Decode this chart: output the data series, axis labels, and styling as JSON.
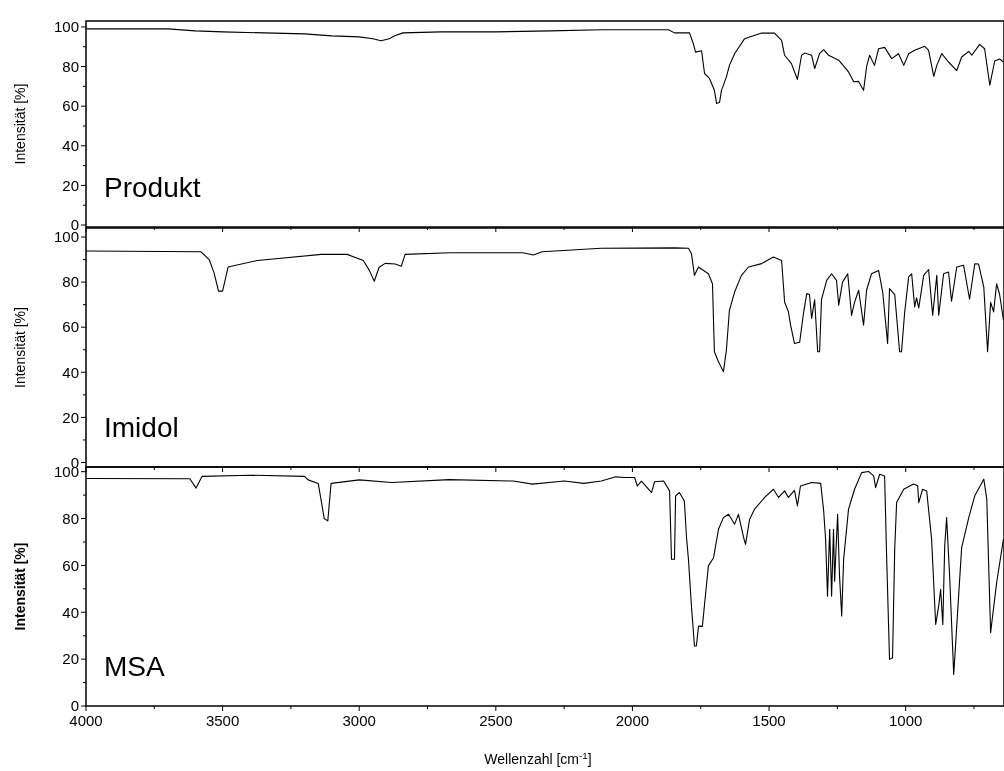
{
  "chart_data": [
    {
      "type": "line",
      "ylabel": "Intensität [%]",
      "annotations": [
        "Produkt"
      ],
      "xlim": [
        4000,
        640
      ],
      "ylim": [
        -1,
        103
      ],
      "tick_labels": "y",
      "xticks": [
        4000,
        {
          "value": 3750,
          "label": null
        },
        3500,
        {
          "value": 3250,
          "label": null
        },
        3000,
        {
          "value": 2750,
          "label": null
        },
        2500,
        {
          "value": 2250,
          "label": null
        },
        2000,
        {
          "value": 1750,
          "label": null
        },
        1500,
        {
          "value": 1250,
          "label": null
        },
        1000,
        {
          "value": 750,
          "label": null
        }
      ],
      "yticks": [
        0,
        {
          "value": 10,
          "label": null
        },
        20,
        {
          "value": 30,
          "label": null
        },
        40,
        {
          "value": 50,
          "label": null
        },
        60,
        {
          "value": 70,
          "label": null
        },
        80,
        {
          "value": 90,
          "label": null
        },
        100
      ],
      "series": [
        {
          "color": "#000000",
          "x": [
            4000,
            3700,
            3600,
            3500,
            3200,
            3100,
            3000,
            2950,
            2920,
            2890,
            2870,
            2840,
            2700,
            2500,
            2300,
            2114,
            1868,
            1846,
            1791,
            1777,
            1769,
            1747,
            1736,
            1718,
            1700,
            1692,
            1681,
            1674,
            1656,
            1645,
            1626,
            1590,
            1527,
            1480,
            1454,
            1443,
            1418,
            1396,
            1381,
            1370,
            1344,
            1333,
            1315,
            1300,
            1282,
            1245,
            1209,
            1190,
            1172,
            1154,
            1143,
            1132,
            1114,
            1099,
            1077,
            1051,
            1026,
            1007,
            989,
            967,
            930,
            916,
            897,
            886,
            868,
            843,
            813,
            795,
            769,
            758,
            729,
            711,
            692,
            674,
            656,
            642
          ],
          "values": [
            99,
            99,
            98,
            97.5,
            96.5,
            95.5,
            95,
            94,
            93,
            94,
            95.5,
            97,
            97.5,
            97.5,
            98,
            98.6,
            98.6,
            97,
            97,
            91.5,
            87.3,
            88,
            76.5,
            74,
            68,
            61.4,
            62,
            68,
            74.8,
            80.6,
            86.5,
            94,
            96.9,
            96.9,
            93.2,
            85.7,
            81.5,
            73.5,
            85.7,
            86.8,
            85.7,
            79,
            86.5,
            88.5,
            85.7,
            83.2,
            77.3,
            72.3,
            72.5,
            68,
            79.8,
            85.7,
            80.6,
            89,
            89.7,
            84,
            86.5,
            80.6,
            86.5,
            88.2,
            90.2,
            88.2,
            75,
            80.6,
            86.5,
            82.3,
            78,
            84.8,
            87.7,
            85.7,
            91.2,
            89,
            70.6,
            82.8,
            83.8,
            82.3
          ]
        }
      ]
    },
    {
      "type": "line",
      "ylabel": "Intensität [%]",
      "annotations": [
        "Imidol"
      ],
      "xlim": [
        4000,
        640
      ],
      "ylim": [
        -2,
        104
      ],
      "tick_labels": "y",
      "xticks": [
        4000,
        {
          "value": 3750,
          "label": null
        },
        3500,
        {
          "value": 3250,
          "label": null
        },
        3000,
        {
          "value": 2750,
          "label": null
        },
        2500,
        {
          "value": 2250,
          "label": null
        },
        2000,
        {
          "value": 1750,
          "label": null
        },
        1500,
        {
          "value": 1250,
          "label": null
        },
        1000,
        {
          "value": 750,
          "label": null
        }
      ],
      "yticks": [
        0,
        {
          "value": 10,
          "label": null
        },
        20,
        {
          "value": 30,
          "label": null
        },
        40,
        {
          "value": 50,
          "label": null
        },
        60,
        {
          "value": 70,
          "label": null
        },
        80,
        {
          "value": 90,
          "label": null
        },
        100
      ],
      "series": [
        {
          "color": "#000000",
          "x": [
            4000,
            3580,
            3549,
            3531,
            3515,
            3500,
            3480,
            3373,
            3139,
            3044,
            2985,
            2963,
            2945,
            2927,
            2905,
            2868,
            2846,
            2832,
            2667,
            2400,
            2363,
            2330,
            2114,
            1846,
            1795,
            1784,
            1773,
            1758,
            1722,
            1707,
            1700,
            1685,
            1667,
            1656,
            1645,
            1626,
            1601,
            1575,
            1527,
            1484,
            1454,
            1443,
            1429,
            1421,
            1407,
            1388,
            1374,
            1362,
            1352,
            1344,
            1333,
            1322,
            1315,
            1308,
            1289,
            1271,
            1253,
            1245,
            1231,
            1212,
            1198,
            1187,
            1172,
            1154,
            1143,
            1125,
            1099,
            1084,
            1066,
            1059,
            1040,
            1022,
            1015,
            1004,
            989,
            978,
            967,
            960,
            952,
            934,
            916,
            901,
            886,
            879,
            861,
            843,
            832,
            813,
            788,
            766,
            747,
            733,
            714,
            700,
            689,
            678,
            667,
            656,
            642
          ],
          "values": [
            93.8,
            93.5,
            90,
            84,
            76,
            76,
            86.7,
            89.6,
            92.3,
            92.3,
            89.6,
            85.2,
            80.4,
            86.6,
            88.3,
            88,
            87,
            92.3,
            93,
            93,
            92,
            93.5,
            95,
            95.2,
            95,
            92.7,
            83,
            86.7,
            83.7,
            79.3,
            49.1,
            44.7,
            40.3,
            49.9,
            67.5,
            75.6,
            83,
            86.7,
            88.2,
            91.1,
            89.6,
            71.2,
            66.8,
            60.9,
            52.8,
            53.3,
            66.1,
            74.9,
            74.5,
            63.9,
            72.2,
            49.1,
            49.1,
            72.2,
            80.8,
            83.7,
            80.8,
            69.8,
            80,
            83.7,
            65.3,
            71,
            76.4,
            60.9,
            76.4,
            83.7,
            85.2,
            75.6,
            52.8,
            77.1,
            74.5,
            49.1,
            49.1,
            66.1,
            82.3,
            83.7,
            69,
            73,
            68.5,
            83,
            85.6,
            65.3,
            83,
            65.3,
            83.7,
            84.5,
            71.5,
            86.7,
            87.5,
            72.4,
            88.1,
            88,
            77.8,
            49.1,
            71,
            66.8,
            79.3,
            74.5,
            63.1
          ]
        }
      ]
    },
    {
      "type": "line",
      "ylabel": "Intensität [%]",
      "xlabel": "Wellenzahl [cm$^{-1}$]",
      "annotations": [
        "MSA"
      ],
      "xlim": [
        4000,
        640
      ],
      "ylim": [
        0,
        102
      ],
      "xticks": [
        4000,
        {
          "value": 3750,
          "label": null
        },
        3500,
        {
          "value": 3250,
          "label": null
        },
        3000,
        {
          "value": 2750,
          "label": null
        },
        2500,
        {
          "value": 2250,
          "label": null
        },
        2000,
        {
          "value": 1750,
          "label": null
        },
        1500,
        {
          "value": 1250,
          "label": null
        },
        1000,
        {
          "value": 750,
          "label": null
        }
      ],
      "yticks": [
        0,
        {
          "value": 10,
          "label": null
        },
        20,
        {
          "value": 30,
          "label": null
        },
        40,
        {
          "value": 50,
          "label": null
        },
        60,
        {
          "value": 70,
          "label": null
        },
        80,
        {
          "value": 90,
          "label": null
        },
        100
      ],
      "series": [
        {
          "color": "#000000",
          "x": [
            4000,
            3620,
            3597,
            3575,
            3400,
            3200,
            3187,
            3150,
            3128,
            3115,
            3103,
            3000,
            2881,
            2670,
            2436,
            2366,
            2249,
            2178,
            2114,
            2061,
            2029,
            1992,
            1982,
            1967,
            1930,
            1919,
            1886,
            1864,
            1857,
            1846,
            1842,
            1828,
            1810,
            1802,
            1795,
            1784,
            1773,
            1766,
            1758,
            1744,
            1736,
            1722,
            1703,
            1685,
            1667,
            1648,
            1626,
            1612,
            1593,
            1586,
            1571,
            1553,
            1516,
            1484,
            1465,
            1443,
            1429,
            1407,
            1396,
            1385,
            1344,
            1311,
            1300,
            1293,
            1286,
            1278,
            1271,
            1264,
            1260,
            1249,
            1242,
            1234,
            1227,
            1209,
            1187,
            1161,
            1136,
            1117,
            1110,
            1095,
            1077,
            1070,
            1059,
            1048,
            1040,
            1033,
            1007,
            971,
            956,
            952,
            938,
            923,
            905,
            890,
            879,
            872,
            864,
            857,
            850,
            839,
            824,
            813,
            795,
            769,
            747,
            714,
            703,
            689,
            667,
            642
          ],
          "values": [
            97.1,
            97,
            93,
            98,
            98.5,
            98,
            96.5,
            95,
            80,
            79,
            95,
            96.5,
            95.4,
            96.6,
            96,
            94.7,
            96,
            95,
            96,
            97.8,
            97.5,
            97.5,
            93.9,
            96,
            91.1,
            95.7,
            96,
            91.8,
            62.6,
            62.6,
            89.7,
            91.1,
            87.5,
            71.9,
            62.6,
            42.7,
            25.6,
            25.6,
            34.1,
            34,
            43.4,
            59.8,
            63.3,
            75.4,
            80.4,
            81.8,
            77.6,
            81.8,
            71.9,
            69,
            79.7,
            84,
            89,
            92.5,
            89,
            91.8,
            89,
            92,
            85.4,
            93.9,
            95.4,
            95,
            83.2,
            71.2,
            46.9,
            75.4,
            46.9,
            75.4,
            53.3,
            81.8,
            55.5,
            38.4,
            62.6,
            84,
            92.5,
            99.6,
            100.1,
            98.2,
            93.2,
            98.9,
            98.2,
            65.5,
            19.9,
            20.6,
            66.9,
            86.8,
            92.5,
            94.7,
            94,
            86.8,
            92.5,
            91.8,
            71.2,
            34.8,
            42.7,
            49.8,
            34.8,
            68.3,
            80.4,
            55.5,
            13.5,
            34.1,
            67.6,
            80.4,
            89.7,
            96.8,
            88.3,
            31.3,
            52.6,
            71.2
          ]
        }
      ]
    }
  ]
}
